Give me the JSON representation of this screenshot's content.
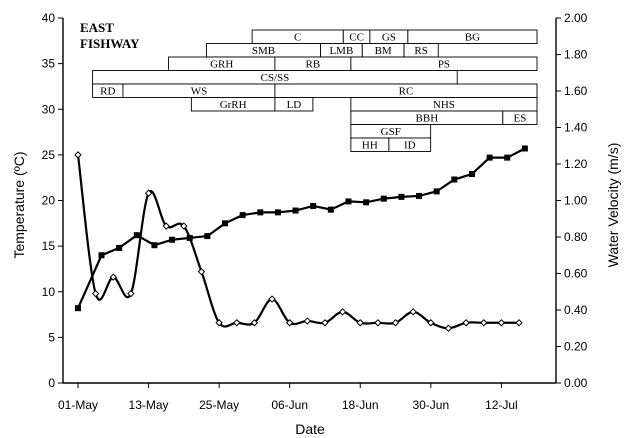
{
  "chart_data": {
    "type": "line",
    "title": "EAST\nFISHWAY",
    "xlabel": "Date",
    "ylabel": "Temperature (ºC)",
    "y2label": "Water Velocity (m/s)",
    "x_tick_labels": [
      "01-May",
      "13-May",
      "25-May",
      "06-Jun",
      "18-Jun",
      "30-Jun",
      "12-Jul"
    ],
    "x_ticks_days": [
      0,
      12,
      24,
      36,
      48,
      60,
      72
    ],
    "ylim": [
      0,
      40
    ],
    "y_ticks": [
      "0",
      "5",
      "10",
      "15",
      "20",
      "25",
      "30",
      "35",
      "40"
    ],
    "y2lim": [
      0,
      2.0
    ],
    "y2_ticks": [
      "0.00",
      "0.20",
      "0.40",
      "0.60",
      "0.80",
      "1.00",
      "1.20",
      "1.40",
      "1.60",
      "1.80",
      "2.00"
    ],
    "series": [
      {
        "axis": "left",
        "marker": "square",
        "x": [
          0,
          4,
          7,
          10,
          13,
          16,
          19,
          22,
          25,
          28,
          31,
          34,
          37,
          40,
          43,
          46,
          49,
          52,
          55,
          58,
          61,
          64,
          67,
          70,
          73,
          76
        ],
        "y": [
          8.2,
          14.0,
          14.8,
          16.2,
          15.1,
          15.7,
          15.9,
          16.1,
          17.5,
          18.4,
          18.7,
          18.7,
          18.9,
          19.4,
          19.0,
          19.9,
          19.8,
          20.2,
          20.4,
          20.5,
          21.0,
          22.3,
          22.9,
          24.7,
          24.7,
          25.7
        ]
      },
      {
        "axis": "right",
        "marker": "diamond",
        "x": [
          0,
          3,
          6,
          9,
          12,
          15,
          18,
          21,
          24,
          27,
          30,
          33,
          36,
          39,
          42,
          45,
          48,
          51,
          54,
          57,
          60,
          63,
          66,
          69,
          72,
          75
        ],
        "y": [
          1.25,
          0.49,
          0.58,
          0.49,
          1.04,
          0.86,
          0.86,
          0.61,
          0.33,
          0.33,
          0.33,
          0.46,
          0.33,
          0.34,
          0.33,
          0.39,
          0.33,
          0.33,
          0.33,
          0.39,
          0.33,
          0.3,
          0.33,
          0.33,
          0.33,
          0.33
        ]
      }
    ],
    "species_bars": [
      {
        "label": "C",
        "row": 0,
        "start": 44,
        "end": 68
      },
      {
        "label": "CC",
        "row": 0,
        "start": 68,
        "end": 75
      },
      {
        "label": "GS",
        "row": 0,
        "start": 75,
        "end": 85
      },
      {
        "label": "BG",
        "row": 0,
        "start": 85,
        "end": 119
      },
      {
        "label": "SMB",
        "row": 1,
        "start": 32,
        "end": 62
      },
      {
        "label": "LMB",
        "row": 1,
        "start": 62,
        "end": 73
      },
      {
        "label": "BM",
        "row": 1,
        "start": 73,
        "end": 84
      },
      {
        "label": "RS",
        "row": 1,
        "start": 84,
        "end": 93
      },
      {
        "label": "GRH",
        "row": 2,
        "start": 22,
        "end": 50
      },
      {
        "label": "RB",
        "row": 2,
        "start": 50,
        "end": 70
      },
      {
        "label": "PS",
        "row": 2,
        "start": 70,
        "end": 119
      },
      {
        "label": "CS/SS",
        "row": 3,
        "start": 2,
        "end": 98
      },
      {
        "label": "RD",
        "row": 4,
        "start": 2,
        "end": 10
      },
      {
        "label": "WS",
        "row": 4,
        "start": 10,
        "end": 50
      },
      {
        "label": "RC",
        "row": 4,
        "start": 50,
        "end": 119
      },
      {
        "label": "GrRH",
        "row": 5,
        "start": 28,
        "end": 50
      },
      {
        "label": "LD",
        "row": 5,
        "start": 50,
        "end": 60
      },
      {
        "label": "NHS",
        "row": 5,
        "start": 70,
        "end": 119
      },
      {
        "label": "BBH",
        "row": 6,
        "start": 70,
        "end": 110
      },
      {
        "label": "ES",
        "row": 6,
        "start": 110,
        "end": 119
      },
      {
        "label": "GSF",
        "row": 7,
        "start": 70,
        "end": 91
      },
      {
        "label": "HH",
        "row": 8,
        "start": 70,
        "end": 80
      },
      {
        "label": "ID",
        "row": 8,
        "start": 80,
        "end": 91
      }
    ],
    "grid": false,
    "legend": "none"
  }
}
